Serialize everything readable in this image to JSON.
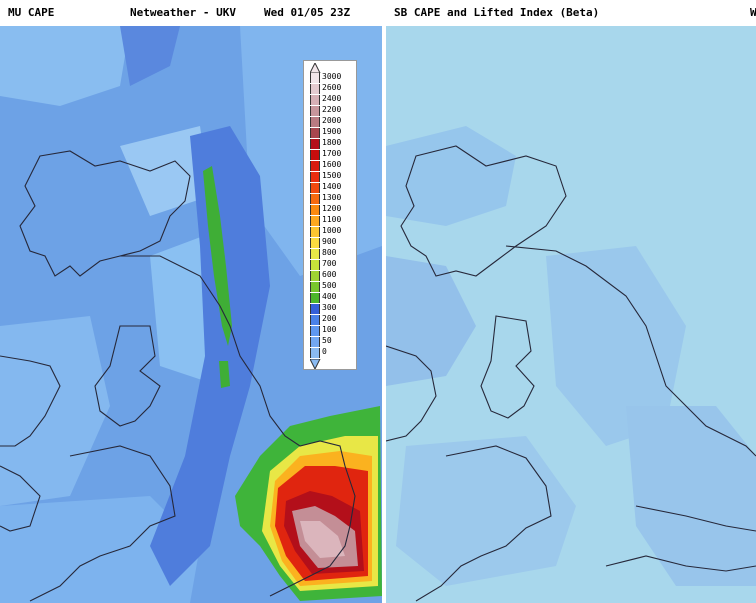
{
  "header": {
    "left_title": "MU CAPE",
    "center_title": "Netweather - UKV",
    "run_time": "Wed 01/05 23Z",
    "right_title": "SB CAPE and Lifted Index (Beta)",
    "right_cut_text": "W"
  },
  "legend": {
    "labels": [
      "3000",
      "2600",
      "2400",
      "2200",
      "2000",
      "1900",
      "1800",
      "1700",
      "1600",
      "1500",
      "1400",
      "1300",
      "1200",
      "1100",
      "1000",
      "900",
      "800",
      "700",
      "600",
      "500",
      "400",
      "300",
      "200",
      "100",
      "50",
      "0"
    ],
    "colors": [
      "#f2e6ea",
      "#e4cbd0",
      "#d6b0b6",
      "#c7969c",
      "#b97b82",
      "#a8464e",
      "#b5101a",
      "#c70d0d",
      "#d81c10",
      "#ea2e10",
      "#f24a10",
      "#f76a10",
      "#fb8a10",
      "#fda820",
      "#fdc630",
      "#fbdc40",
      "#e8e846",
      "#c6e13a",
      "#9fd333",
      "#78c62d",
      "#4cb62a",
      "#3560d8",
      "#4a82e8",
      "#5f98ef",
      "#73a8f2",
      "#8bbbf2"
    ]
  },
  "map_colors": {
    "land_bg": "#7aaee8",
    "low_cape": "#5c8fe0",
    "sea_light": "#a9d5ec",
    "right_bg": "#a8d7ec",
    "right_patch": "#93c0ea",
    "coast": "#2b2b3a"
  }
}
